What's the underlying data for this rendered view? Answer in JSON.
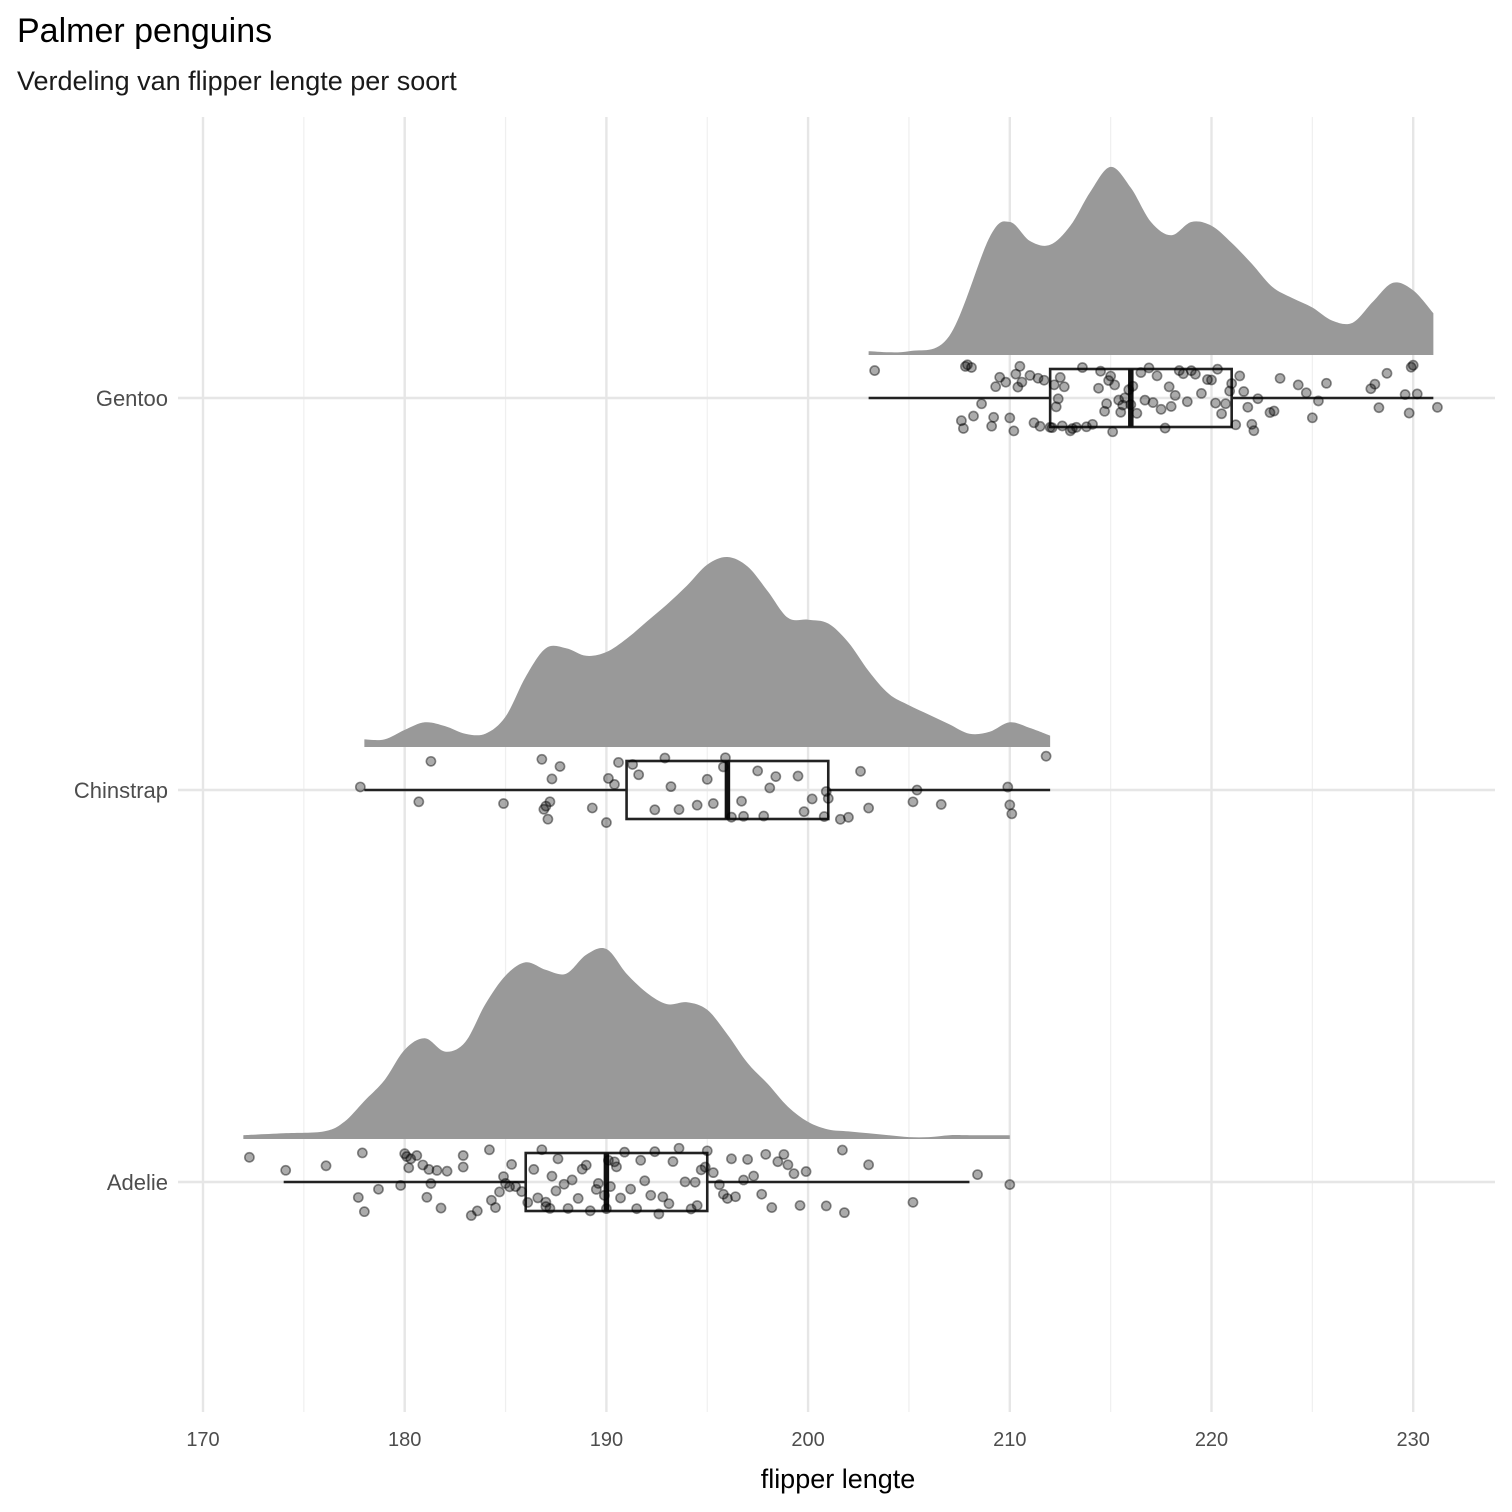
{
  "chart_data": {
    "type": "raincloud",
    "title": "Palmer penguins",
    "subtitle": "Verdeling van flipper lengte per soort",
    "xlabel": "flipper lengte",
    "ylabel": "",
    "xlim": [
      167,
      234
    ],
    "x_ticks": [
      170,
      180,
      190,
      200,
      210,
      220,
      230
    ],
    "grid": true,
    "colors": {
      "density": "#999999",
      "box": "#222222",
      "points": "#000000"
    },
    "categories": [
      "Gentoo",
      "Chinstrap",
      "Adelie"
    ],
    "series": [
      {
        "name": "Gentoo",
        "range": [
          203,
          231
        ],
        "box": {
          "min": 203,
          "q1": 212,
          "median": 216,
          "q3": 221,
          "max": 231
        },
        "density": [
          [
            203,
            0.02
          ],
          [
            205,
            0.02
          ],
          [
            207,
            0.1
          ],
          [
            209,
            0.62
          ],
          [
            210,
            0.7
          ],
          [
            211,
            0.6
          ],
          [
            212,
            0.58
          ],
          [
            213,
            0.68
          ],
          [
            214,
            0.86
          ],
          [
            215,
            0.99
          ],
          [
            216,
            0.88
          ],
          [
            217,
            0.7
          ],
          [
            218,
            0.63
          ],
          [
            219,
            0.7
          ],
          [
            220,
            0.68
          ],
          [
            221,
            0.59
          ],
          [
            222,
            0.48
          ],
          [
            223,
            0.36
          ],
          [
            224,
            0.3
          ],
          [
            225,
            0.25
          ],
          [
            226,
            0.18
          ],
          [
            227,
            0.17
          ],
          [
            228,
            0.28
          ],
          [
            229,
            0.38
          ],
          [
            230,
            0.34
          ],
          [
            231,
            0.22
          ]
        ],
        "points": [
          203.3,
          207.6,
          207.7,
          207.8,
          207.9,
          208.1,
          208.2,
          208.6,
          209.1,
          209.2,
          209.3,
          209.5,
          209.8,
          210.0,
          210.2,
          210.3,
          210.4,
          210.5,
          210.6,
          211.0,
          211.2,
          211.4,
          211.5,
          211.7,
          212.0,
          212.1,
          212.2,
          212.3,
          212.4,
          212.5,
          212.6,
          212.7,
          213.0,
          213.1,
          213.3,
          213.6,
          213.8,
          214.1,
          214.4,
          214.5,
          214.7,
          214.8,
          214.9,
          215.0,
          215.1,
          215.2,
          215.4,
          215.5,
          215.6,
          215.7,
          215.9,
          216.0,
          216.1,
          216.3,
          216.5,
          216.7,
          216.9,
          217.1,
          217.3,
          217.5,
          217.7,
          217.9,
          218.0,
          218.2,
          218.4,
          218.6,
          218.8,
          219.0,
          219.2,
          219.5,
          219.8,
          220.0,
          220.2,
          220.3,
          220.5,
          220.7,
          220.9,
          221.0,
          221.2,
          221.4,
          221.6,
          221.8,
          222.0,
          222.1,
          222.3,
          222.9,
          223.1,
          223.4,
          224.3,
          224.7,
          225.0,
          225.3,
          225.7,
          227.9,
          228.1,
          228.3,
          228.7,
          229.6,
          229.8,
          229.9,
          230.0,
          230.2,
          231.2
        ]
      },
      {
        "name": "Chinstrap",
        "range": [
          178,
          212
        ],
        "box": {
          "min": 178,
          "q1": 191,
          "median": 196,
          "q3": 201,
          "max": 212
        },
        "density": [
          [
            178,
            0.04
          ],
          [
            179,
            0.04
          ],
          [
            180,
            0.09
          ],
          [
            181,
            0.13
          ],
          [
            182,
            0.11
          ],
          [
            183,
            0.07
          ],
          [
            184,
            0.07
          ],
          [
            185,
            0.16
          ],
          [
            186,
            0.37
          ],
          [
            187,
            0.52
          ],
          [
            188,
            0.52
          ],
          [
            189,
            0.48
          ],
          [
            190,
            0.5
          ],
          [
            191,
            0.57
          ],
          [
            192,
            0.66
          ],
          [
            193,
            0.75
          ],
          [
            194,
            0.85
          ],
          [
            195,
            0.96
          ],
          [
            196,
            1.0
          ],
          [
            197,
            0.95
          ],
          [
            198,
            0.82
          ],
          [
            199,
            0.68
          ],
          [
            200,
            0.67
          ],
          [
            201,
            0.65
          ],
          [
            202,
            0.55
          ],
          [
            203,
            0.4
          ],
          [
            204,
            0.28
          ],
          [
            205,
            0.22
          ],
          [
            206,
            0.17
          ],
          [
            207,
            0.12
          ],
          [
            208,
            0.07
          ],
          [
            209,
            0.08
          ],
          [
            210,
            0.13
          ],
          [
            211,
            0.1
          ],
          [
            212,
            0.06
          ]
        ],
        "points": [
          177.8,
          180.7,
          181.3,
          184.9,
          186.8,
          186.9,
          187.0,
          187.1,
          187.2,
          187.3,
          187.7,
          189.3,
          190.0,
          190.1,
          190.4,
          190.6,
          191.3,
          191.6,
          192.4,
          192.9,
          193.2,
          193.6,
          194.5,
          195.0,
          195.3,
          195.8,
          195.9,
          196.2,
          196.7,
          196.8,
          197.5,
          197.8,
          198.1,
          198.4,
          199.5,
          199.8,
          200.2,
          200.8,
          200.9,
          201.0,
          201.6,
          202.0,
          202.6,
          203.0,
          205.2,
          205.4,
          206.6,
          209.9,
          210.0,
          210.1,
          211.8
        ]
      },
      {
        "name": "Adelie",
        "range": [
          172,
          210
        ],
        "box": {
          "min": 174,
          "q1": 186,
          "median": 190,
          "q3": 195,
          "max": 208
        },
        "density": [
          [
            172,
            0.02
          ],
          [
            174,
            0.03
          ],
          [
            176,
            0.04
          ],
          [
            177,
            0.09
          ],
          [
            178,
            0.2
          ],
          [
            179,
            0.31
          ],
          [
            180,
            0.47
          ],
          [
            181,
            0.53
          ],
          [
            182,
            0.46
          ],
          [
            183,
            0.51
          ],
          [
            184,
            0.71
          ],
          [
            185,
            0.86
          ],
          [
            186,
            0.93
          ],
          [
            187,
            0.89
          ],
          [
            188,
            0.87
          ],
          [
            189,
            0.97
          ],
          [
            190,
            1.0
          ],
          [
            191,
            0.87
          ],
          [
            192,
            0.77
          ],
          [
            193,
            0.71
          ],
          [
            194,
            0.72
          ],
          [
            195,
            0.68
          ],
          [
            196,
            0.55
          ],
          [
            197,
            0.4
          ],
          [
            198,
            0.29
          ],
          [
            199,
            0.17
          ],
          [
            200,
            0.09
          ],
          [
            201,
            0.05
          ],
          [
            202,
            0.04
          ],
          [
            203,
            0.03
          ],
          [
            204,
            0.02
          ],
          [
            205,
            0.01
          ],
          [
            206,
            0.01
          ],
          [
            207,
            0.02
          ],
          [
            208,
            0.02
          ],
          [
            210,
            0.02
          ]
        ],
        "points": [
          172.3,
          174.1,
          176.1,
          177.7,
          177.9,
          178.0,
          178.7,
          179.8,
          180.0,
          180.1,
          180.2,
          180.3,
          180.6,
          180.9,
          181.1,
          181.2,
          181.3,
          181.6,
          181.8,
          182.1,
          182.9,
          182.9,
          183.3,
          183.6,
          184.2,
          184.3,
          184.5,
          184.7,
          184.9,
          185.0,
          185.2,
          185.3,
          185.5,
          185.8,
          186.1,
          186.4,
          186.6,
          186.8,
          187.0,
          187.0,
          187.2,
          187.3,
          187.5,
          187.6,
          187.9,
          188.1,
          188.3,
          188.6,
          188.8,
          189.0,
          189.2,
          189.5,
          189.6,
          189.9,
          190.0,
          190.1,
          190.2,
          190.4,
          190.5,
          190.7,
          190.9,
          191.2,
          191.5,
          191.7,
          191.9,
          192.2,
          192.4,
          192.6,
          192.8,
          193.1,
          193.3,
          193.6,
          193.9,
          194.2,
          194.4,
          194.5,
          194.7,
          194.9,
          195.0,
          195.3,
          195.6,
          195.8,
          196.0,
          196.2,
          196.4,
          196.8,
          197.0,
          197.3,
          197.7,
          197.9,
          198.2,
          198.5,
          198.8,
          199.0,
          199.3,
          199.6,
          199.9,
          200.9,
          201.7,
          201.8,
          203.0,
          205.2,
          208.4,
          210.0
        ]
      }
    ]
  }
}
